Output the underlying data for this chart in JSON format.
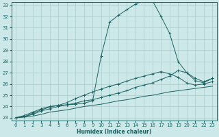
{
  "xlabel": "Humidex (Indice chaleur)",
  "xlim": [
    -0.5,
    23.5
  ],
  "ylim": [
    22.75,
    33.25
  ],
  "xticks": [
    0,
    1,
    2,
    3,
    4,
    5,
    6,
    7,
    8,
    9,
    10,
    11,
    12,
    13,
    14,
    15,
    16,
    17,
    18,
    19,
    20,
    21,
    22,
    23
  ],
  "yticks": [
    23,
    24,
    25,
    26,
    27,
    28,
    29,
    30,
    31,
    32,
    33
  ],
  "bg_color": "#cde8e8",
  "grid_color": "#aacccc",
  "line_color": "#1a6060",
  "curves": [
    {
      "x": [
        0,
        1,
        2,
        3,
        4,
        5,
        6,
        7,
        8,
        9,
        10,
        11,
        12,
        13,
        14,
        15,
        16,
        17,
        18,
        19,
        20,
        21,
        22,
        23
      ],
      "y": [
        23,
        23.2,
        23.5,
        23.8,
        24.0,
        24.1,
        24.15,
        24.2,
        24.3,
        24.5,
        28.5,
        31.5,
        32.1,
        32.6,
        33.1,
        33.4,
        33.4,
        32.0,
        30.5,
        28.0,
        27.0,
        26.3,
        26.1,
        26.5
      ],
      "marker": true
    },
    {
      "x": [
        0,
        1,
        2,
        3,
        4,
        5,
        6,
        7,
        8,
        9,
        10,
        11,
        12,
        13,
        14,
        15,
        16,
        17,
        18,
        19,
        20,
        21,
        22,
        23
      ],
      "y": [
        23,
        23.1,
        23.3,
        23.6,
        23.8,
        24.0,
        24.15,
        24.3,
        24.5,
        24.6,
        24.8,
        25.0,
        25.2,
        25.4,
        25.7,
        25.9,
        26.1,
        26.4,
        26.7,
        27.2,
        27.0,
        26.5,
        26.2,
        26.5
      ],
      "marker": true
    },
    {
      "x": [
        0,
        1,
        2,
        3,
        4,
        5,
        6,
        7,
        8,
        9,
        10,
        11,
        12,
        13,
        14,
        15,
        16,
        17,
        18,
        19,
        20,
        21,
        22,
        23
      ],
      "y": [
        23,
        23.05,
        23.15,
        23.3,
        23.5,
        23.6,
        23.7,
        23.85,
        24.0,
        24.1,
        24.2,
        24.35,
        24.5,
        24.6,
        24.75,
        24.9,
        25.0,
        25.15,
        25.3,
        25.4,
        25.5,
        25.6,
        25.7,
        25.8
      ],
      "marker": false
    },
    {
      "x": [
        0,
        1,
        2,
        3,
        4,
        5,
        6,
        7,
        8,
        9,
        10,
        11,
        12,
        13,
        14,
        15,
        16,
        17,
        18,
        19,
        20,
        21,
        22,
        23
      ],
      "y": [
        23,
        23.1,
        23.4,
        23.7,
        23.95,
        24.1,
        24.35,
        24.7,
        25.0,
        25.3,
        25.55,
        25.8,
        26.0,
        26.25,
        26.5,
        26.7,
        26.9,
        27.1,
        26.9,
        26.6,
        26.1,
        25.9,
        26.0,
        26.2
      ],
      "marker": true
    }
  ]
}
